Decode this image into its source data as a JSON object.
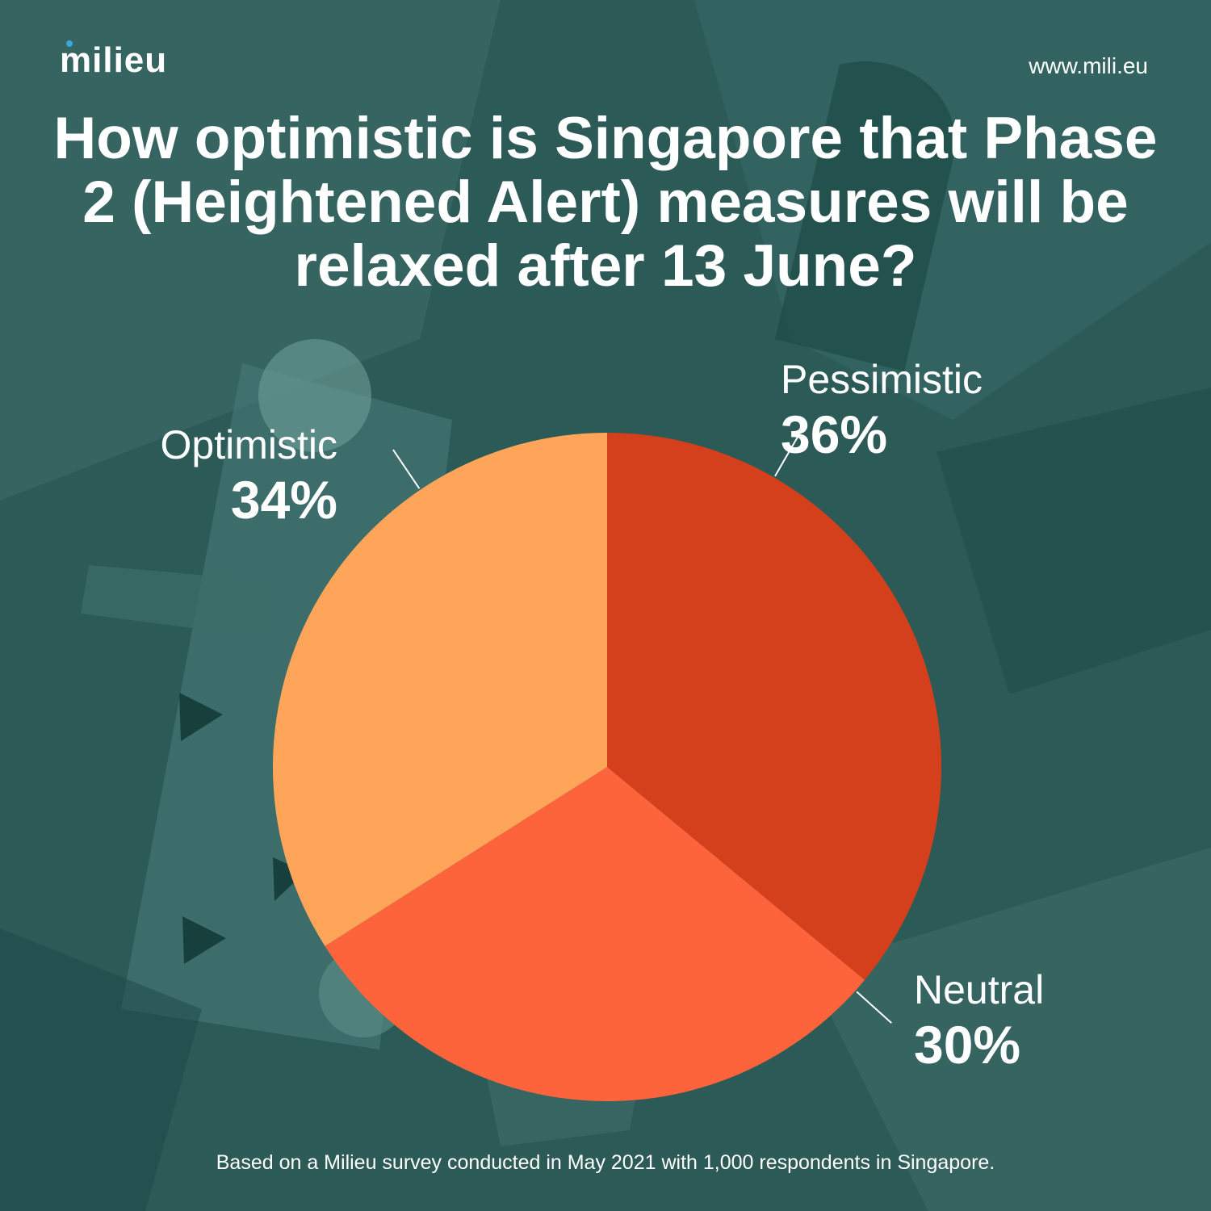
{
  "brand": {
    "logo_text": "milieu",
    "website": "www.mili.eu"
  },
  "colors": {
    "background": "#2c5a57",
    "optimistic": "#fea55a",
    "pessimistic": "#d3401b",
    "neutral": "#fe643b",
    "logo_dot": "#3aa7d9"
  },
  "chart_data": {
    "type": "pie",
    "title": "How optimistic is Singapore that Phase 2 (Heightened Alert) measures will be relaxed after 13 June?",
    "slices": [
      {
        "label": "Pessimistic",
        "value": 36,
        "display": "36%",
        "color": "#d3401b"
      },
      {
        "label": "Neutral",
        "value": 30,
        "display": "30%",
        "color": "#fe643b"
      },
      {
        "label": "Optimistic",
        "value": 34,
        "display": "34%",
        "color": "#fea55a"
      }
    ],
    "start_angle_deg": 0,
    "direction": "clockwise",
    "legend": "none"
  },
  "footnote": "Based on a Milieu survey conducted in May 2021 with 1,000 respondents in Singapore."
}
